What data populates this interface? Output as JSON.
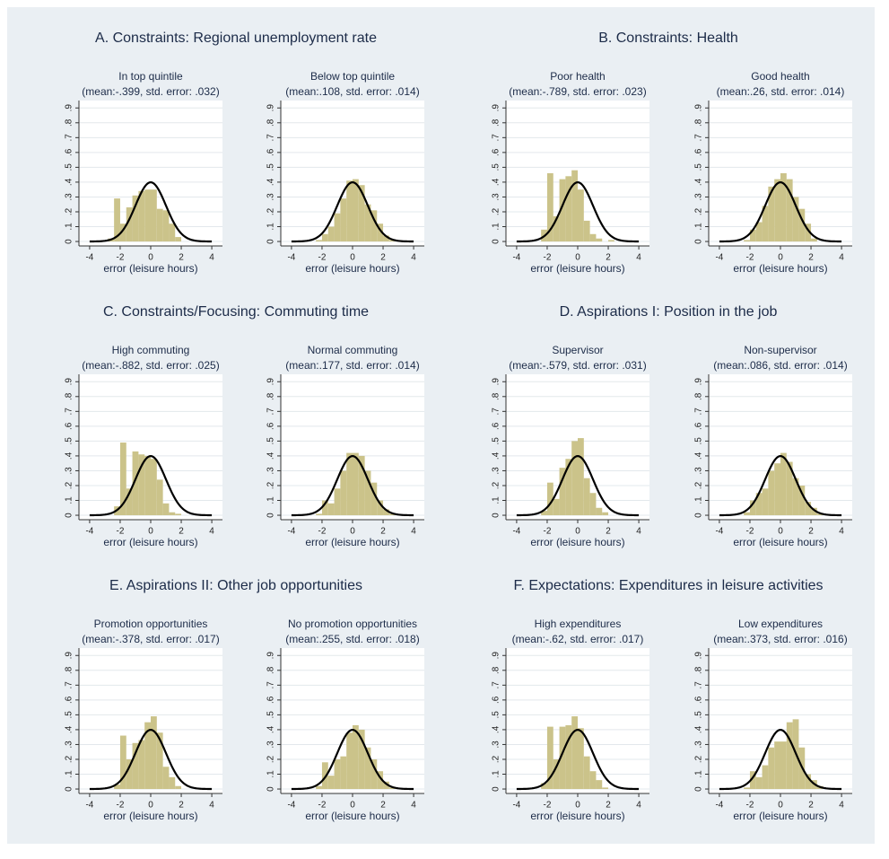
{
  "figure": {
    "panel_titles": [
      "A. Constraints: Regional unemployment rate",
      "B. Constraints: Health",
      "C. Constraints/Focusing: Commuting time",
      "D. Aspirations I: Position in the job",
      "E. Aspirations II: Other job opportunities",
      "F. Expectations: Expenditures in leisure activities"
    ]
  },
  "chart_data": [
    {
      "type": "histogram",
      "title": "In top quintile",
      "subtitle": "(mean:-.399, std. error: .032)",
      "xlabel": "error (leisure hours)",
      "color": "#cbc38a",
      "curve_color": "#000000",
      "density_curve": true,
      "grid": true,
      "bins": [
        -2.8,
        -2.4,
        -2,
        -1.6,
        -1.2,
        -0.8,
        -0.4,
        0,
        0.4,
        0.8,
        1.2,
        1.6,
        2,
        2.4,
        2.8
      ],
      "values": [
        0.02,
        0.29,
        0.12,
        0.23,
        0.31,
        0.34,
        0.35,
        0.35,
        0.22,
        0.21,
        0.12,
        0.03,
        0,
        0
      ],
      "xlim": [
        -4.7,
        4.7
      ],
      "ylim": [
        -0.03,
        0.95
      ],
      "xticks": [
        -4,
        -2,
        0,
        2,
        4
      ],
      "yticks": [
        0,
        {
          "value": 0.1,
          "label": ".1"
        },
        {
          "value": 0.2,
          "label": ".2"
        },
        {
          "value": 0.3,
          "label": ".3"
        },
        {
          "value": 0.4,
          "label": ".4"
        },
        {
          "value": 0.5,
          "label": ".5"
        },
        {
          "value": 0.6,
          "label": ".6"
        },
        {
          "value": 0.7,
          "label": ".7"
        },
        {
          "value": 0.8,
          "label": ".8"
        },
        {
          "value": 0.9,
          "label": ".9"
        }
      ]
    },
    {
      "type": "histogram",
      "title": "Below top quintile",
      "subtitle": "(mean:.108, std. error: .014)",
      "xlabel": "error (leisure hours)",
      "color": "#cbc38a",
      "curve_color": "#000000",
      "density_curve": true,
      "grid": true,
      "bins": [
        -2.8,
        -2.4,
        -2,
        -1.6,
        -1.2,
        -0.8,
        -0.4,
        0,
        0.4,
        0.8,
        1.2,
        1.6,
        2,
        2.4,
        2.8
      ],
      "values": [
        0,
        0.01,
        0.05,
        0.1,
        0.19,
        0.29,
        0.41,
        0.42,
        0.38,
        0.25,
        0.21,
        0.12,
        0.04,
        0.01
      ],
      "xlim": [
        -4.7,
        4.7
      ],
      "ylim": [
        -0.03,
        0.95
      ],
      "xticks": [
        -4,
        -2,
        0,
        2,
        4
      ],
      "yticks": [
        0,
        {
          "value": 0.1,
          "label": ".1"
        },
        {
          "value": 0.2,
          "label": ".2"
        },
        {
          "value": 0.3,
          "label": ".3"
        },
        {
          "value": 0.4,
          "label": ".4"
        },
        {
          "value": 0.5,
          "label": ".5"
        },
        {
          "value": 0.6,
          "label": ".6"
        },
        {
          "value": 0.7,
          "label": ".7"
        },
        {
          "value": 0.8,
          "label": ".8"
        },
        {
          "value": 0.9,
          "label": ".9"
        }
      ]
    },
    {
      "type": "histogram",
      "title": "Poor health",
      "subtitle": "(mean:-.789, std. error: .023)",
      "xlabel": "error (leisure hours)",
      "color": "#cbc38a",
      "curve_color": "#000000",
      "density_curve": true,
      "grid": true,
      "bins": [
        -2.8,
        -2.4,
        -2,
        -1.6,
        -1.2,
        -0.8,
        -0.4,
        0,
        0.4,
        0.8,
        1.2,
        1.6,
        2,
        2.4,
        2.8
      ],
      "values": [
        0,
        0.08,
        0.46,
        0.17,
        0.42,
        0.44,
        0.48,
        0.35,
        0.14,
        0.05,
        0.02,
        0,
        0.01,
        0
      ],
      "xlim": [
        -4.7,
        4.7
      ],
      "ylim": [
        -0.03,
        0.95
      ],
      "xticks": [
        -4,
        -2,
        0,
        2,
        4
      ],
      "yticks": [
        0,
        {
          "value": 0.1,
          "label": ".1"
        },
        {
          "value": 0.2,
          "label": ".2"
        },
        {
          "value": 0.3,
          "label": ".3"
        },
        {
          "value": 0.4,
          "label": ".4"
        },
        {
          "value": 0.5,
          "label": ".5"
        },
        {
          "value": 0.6,
          "label": ".6"
        },
        {
          "value": 0.7,
          "label": ".7"
        },
        {
          "value": 0.8,
          "label": ".8"
        },
        {
          "value": 0.9,
          "label": ".9"
        }
      ]
    },
    {
      "type": "histogram",
      "title": "Good health",
      "subtitle": "(mean:.26, std. error: .014)",
      "xlabel": "error (leisure hours)",
      "color": "#cbc38a",
      "curve_color": "#000000",
      "density_curve": true,
      "grid": true,
      "bins": [
        -2.8,
        -2.4,
        -2,
        -1.6,
        -1.2,
        -0.8,
        -0.4,
        0,
        0.4,
        0.8,
        1.2,
        1.6,
        2,
        2.4,
        2.8
      ],
      "values": [
        0,
        0.01,
        0.08,
        0.13,
        0.24,
        0.37,
        0.42,
        0.46,
        0.42,
        0.3,
        0.22,
        0.12,
        0.02,
        0
      ],
      "xlim": [
        -4.7,
        4.7
      ],
      "ylim": [
        -0.03,
        0.95
      ],
      "xticks": [
        -4,
        -2,
        0,
        2,
        4
      ],
      "yticks": [
        0,
        {
          "value": 0.1,
          "label": ".1"
        },
        {
          "value": 0.2,
          "label": ".2"
        },
        {
          "value": 0.3,
          "label": ".3"
        },
        {
          "value": 0.4,
          "label": ".4"
        },
        {
          "value": 0.5,
          "label": ".5"
        },
        {
          "value": 0.6,
          "label": ".6"
        },
        {
          "value": 0.7,
          "label": ".7"
        },
        {
          "value": 0.8,
          "label": ".8"
        },
        {
          "value": 0.9,
          "label": ".9"
        }
      ]
    },
    {
      "type": "histogram",
      "title": "High commuting",
      "subtitle": "(mean:-.882, std. error: .025)",
      "xlabel": "error (leisure hours)",
      "color": "#cbc38a",
      "curve_color": "#000000",
      "density_curve": true,
      "grid": true,
      "bins": [
        -2.8,
        -2.4,
        -2,
        -1.6,
        -1.2,
        -0.8,
        -0.4,
        0,
        0.4,
        0.8,
        1.2,
        1.6,
        2,
        2.4,
        2.8
      ],
      "values": [
        0,
        0.06,
        0.49,
        0.18,
        0.43,
        0.41,
        0.4,
        0.38,
        0.24,
        0.08,
        0.02,
        0.01,
        0,
        0
      ],
      "xlim": [
        -4.7,
        4.7
      ],
      "ylim": [
        -0.03,
        0.95
      ],
      "xticks": [
        -4,
        -2,
        0,
        2,
        4
      ],
      "yticks": [
        0,
        {
          "value": 0.1,
          "label": ".1"
        },
        {
          "value": 0.2,
          "label": ".2"
        },
        {
          "value": 0.3,
          "label": ".3"
        },
        {
          "value": 0.4,
          "label": ".4"
        },
        {
          "value": 0.5,
          "label": ".5"
        },
        {
          "value": 0.6,
          "label": ".6"
        },
        {
          "value": 0.7,
          "label": ".7"
        },
        {
          "value": 0.8,
          "label": ".8"
        },
        {
          "value": 0.9,
          "label": ".9"
        }
      ]
    },
    {
      "type": "histogram",
      "title": "Normal commuting",
      "subtitle": "(mean:.177, std. error: .014)",
      "xlabel": "error (leisure hours)",
      "color": "#cbc38a",
      "curve_color": "#000000",
      "density_curve": true,
      "grid": true,
      "bins": [
        -2.8,
        -2.4,
        -2,
        -1.6,
        -1.2,
        -0.8,
        -0.4,
        0,
        0.4,
        0.8,
        1.2,
        1.6,
        2,
        2.4,
        2.8
      ],
      "values": [
        0,
        0.01,
        0.1,
        0.08,
        0.18,
        0.3,
        0.42,
        0.42,
        0.4,
        0.3,
        0.22,
        0.1,
        0.04,
        0.01
      ],
      "xlim": [
        -4.7,
        4.7
      ],
      "ylim": [
        -0.03,
        0.95
      ],
      "xticks": [
        -4,
        -2,
        0,
        2,
        4
      ],
      "yticks": [
        0,
        {
          "value": 0.1,
          "label": ".1"
        },
        {
          "value": 0.2,
          "label": ".2"
        },
        {
          "value": 0.3,
          "label": ".3"
        },
        {
          "value": 0.4,
          "label": ".4"
        },
        {
          "value": 0.5,
          "label": ".5"
        },
        {
          "value": 0.6,
          "label": ".6"
        },
        {
          "value": 0.7,
          "label": ".7"
        },
        {
          "value": 0.8,
          "label": ".8"
        },
        {
          "value": 0.9,
          "label": ".9"
        }
      ]
    },
    {
      "type": "histogram",
      "title": "Supervisor",
      "subtitle": "(mean:-.579, std. error: .031)",
      "xlabel": "error (leisure hours)",
      "color": "#cbc38a",
      "curve_color": "#000000",
      "density_curve": true,
      "grid": true,
      "bins": [
        -2.8,
        -2.4,
        -2,
        -1.6,
        -1.2,
        -0.8,
        -0.4,
        0,
        0.4,
        0.8,
        1.2,
        1.6,
        2,
        2.4,
        2.8
      ],
      "values": [
        0,
        0.03,
        0.22,
        0.11,
        0.32,
        0.38,
        0.5,
        0.52,
        0.25,
        0.15,
        0.05,
        0.02,
        0,
        0
      ],
      "xlim": [
        -4.7,
        4.7
      ],
      "ylim": [
        -0.03,
        0.95
      ],
      "xticks": [
        -4,
        -2,
        0,
        2,
        4
      ],
      "yticks": [
        0,
        {
          "value": 0.1,
          "label": ".1"
        },
        {
          "value": 0.2,
          "label": ".2"
        },
        {
          "value": 0.3,
          "label": ".3"
        },
        {
          "value": 0.4,
          "label": ".4"
        },
        {
          "value": 0.5,
          "label": ".5"
        },
        {
          "value": 0.6,
          "label": ".6"
        },
        {
          "value": 0.7,
          "label": ".7"
        },
        {
          "value": 0.8,
          "label": ".8"
        },
        {
          "value": 0.9,
          "label": ".9"
        }
      ]
    },
    {
      "type": "histogram",
      "title": "Non-supervisor",
      "subtitle": "(mean:.086, std. error: .014)",
      "xlabel": "error (leisure hours)",
      "color": "#cbc38a",
      "curve_color": "#000000",
      "density_curve": true,
      "grid": true,
      "bins": [
        -2.8,
        -2.4,
        -2,
        -1.6,
        -1.2,
        -0.8,
        -0.4,
        0,
        0.4,
        0.8,
        1.2,
        1.6,
        2,
        2.4,
        2.8
      ],
      "values": [
        0,
        0.02,
        0.1,
        0.15,
        0.18,
        0.3,
        0.35,
        0.42,
        0.36,
        0.25,
        0.2,
        0.09,
        0.05,
        0.01
      ],
      "xlim": [
        -4.7,
        4.7
      ],
      "ylim": [
        -0.03,
        0.95
      ],
      "xticks": [
        -4,
        -2,
        0,
        2,
        4
      ],
      "yticks": [
        0,
        {
          "value": 0.1,
          "label": ".1"
        },
        {
          "value": 0.2,
          "label": ".2"
        },
        {
          "value": 0.3,
          "label": ".3"
        },
        {
          "value": 0.4,
          "label": ".4"
        },
        {
          "value": 0.5,
          "label": ".5"
        },
        {
          "value": 0.6,
          "label": ".6"
        },
        {
          "value": 0.7,
          "label": ".7"
        },
        {
          "value": 0.8,
          "label": ".8"
        },
        {
          "value": 0.9,
          "label": ".9"
        }
      ]
    },
    {
      "type": "histogram",
      "title": "Promotion opportunities",
      "subtitle": "(mean:-.378, std. error: .017)",
      "xlabel": "error (leisure hours)",
      "color": "#cbc38a",
      "curve_color": "#000000",
      "density_curve": true,
      "grid": true,
      "bins": [
        -2.8,
        -2.4,
        -2,
        -1.6,
        -1.2,
        -0.8,
        -0.4,
        0,
        0.4,
        0.8,
        1.2,
        1.6,
        2,
        2.4,
        2.8
      ],
      "values": [
        0,
        0.03,
        0.36,
        0.2,
        0.31,
        0.33,
        0.45,
        0.49,
        0.38,
        0.15,
        0.08,
        0.02,
        0,
        0
      ],
      "xlim": [
        -4.7,
        4.7
      ],
      "ylim": [
        -0.03,
        0.95
      ],
      "xticks": [
        -4,
        -2,
        0,
        2,
        4
      ],
      "yticks": [
        0,
        {
          "value": 0.1,
          "label": ".1"
        },
        {
          "value": 0.2,
          "label": ".2"
        },
        {
          "value": 0.3,
          "label": ".3"
        },
        {
          "value": 0.4,
          "label": ".4"
        },
        {
          "value": 0.5,
          "label": ".5"
        },
        {
          "value": 0.6,
          "label": ".6"
        },
        {
          "value": 0.7,
          "label": ".7"
        },
        {
          "value": 0.8,
          "label": ".8"
        },
        {
          "value": 0.9,
          "label": ".9"
        }
      ]
    },
    {
      "type": "histogram",
      "title": "No promotion opportunities",
      "subtitle": "(mean:.255, std. error: .018)",
      "xlabel": "error (leisure hours)",
      "color": "#cbc38a",
      "curve_color": "#000000",
      "density_curve": true,
      "grid": true,
      "bins": [
        -2.8,
        -2.4,
        -2,
        -1.6,
        -1.2,
        -0.8,
        -0.4,
        0,
        0.4,
        0.8,
        1.2,
        1.6,
        2,
        2.4,
        2.8
      ],
      "values": [
        0,
        0.02,
        0.18,
        0.09,
        0.2,
        0.22,
        0.38,
        0.43,
        0.4,
        0.28,
        0.2,
        0.12,
        0.05,
        0.01
      ],
      "xlim": [
        -4.7,
        4.7
      ],
      "ylim": [
        -0.03,
        0.95
      ],
      "xticks": [
        -4,
        -2,
        0,
        2,
        4
      ],
      "yticks": [
        0,
        {
          "value": 0.1,
          "label": ".1"
        },
        {
          "value": 0.2,
          "label": ".2"
        },
        {
          "value": 0.3,
          "label": ".3"
        },
        {
          "value": 0.4,
          "label": ".4"
        },
        {
          "value": 0.5,
          "label": ".5"
        },
        {
          "value": 0.6,
          "label": ".6"
        },
        {
          "value": 0.7,
          "label": ".7"
        },
        {
          "value": 0.8,
          "label": ".8"
        },
        {
          "value": 0.9,
          "label": ".9"
        }
      ]
    },
    {
      "type": "histogram",
      "title": "High expenditures",
      "subtitle": "(mean:-.62, std. error: .017)",
      "xlabel": "error (leisure hours)",
      "color": "#cbc38a",
      "curve_color": "#000000",
      "density_curve": true,
      "grid": true,
      "bins": [
        -2.8,
        -2.4,
        -2,
        -1.6,
        -1.2,
        -0.8,
        -0.4,
        0,
        0.4,
        0.8,
        1.2,
        1.6,
        2,
        2.4,
        2.8
      ],
      "values": [
        0,
        0.04,
        0.42,
        0.2,
        0.42,
        0.43,
        0.49,
        0.41,
        0.22,
        0.12,
        0.06,
        0.01,
        0,
        0
      ],
      "xlim": [
        -4.7,
        4.7
      ],
      "ylim": [
        -0.03,
        0.95
      ],
      "xticks": [
        -4,
        -2,
        0,
        2,
        4
      ],
      "yticks": [
        0,
        {
          "value": 0.1,
          "label": ".1"
        },
        {
          "value": 0.2,
          "label": ".2"
        },
        {
          "value": 0.3,
          "label": ".3"
        },
        {
          "value": 0.4,
          "label": ".4"
        },
        {
          "value": 0.5,
          "label": ".5"
        },
        {
          "value": 0.6,
          "label": ".6"
        },
        {
          "value": 0.7,
          "label": ".7"
        },
        {
          "value": 0.8,
          "label": ".8"
        },
        {
          "value": 0.9,
          "label": ".9"
        }
      ]
    },
    {
      "type": "histogram",
      "title": "Low expenditures",
      "subtitle": "(mean:.373, std. error: .016)",
      "xlabel": "error (leisure hours)",
      "color": "#cbc38a",
      "curve_color": "#000000",
      "density_curve": true,
      "grid": true,
      "bins": [
        -2.8,
        -2.4,
        -2,
        -1.6,
        -1.2,
        -0.8,
        -0.4,
        0,
        0.4,
        0.8,
        1.2,
        1.6,
        2,
        2.4,
        2.8
      ],
      "values": [
        0,
        0.01,
        0.12,
        0.08,
        0.16,
        0.28,
        0.32,
        0.32,
        0.45,
        0.47,
        0.28,
        0.1,
        0.06,
        0.02
      ],
      "xlim": [
        -4.7,
        4.7
      ],
      "ylim": [
        -0.03,
        0.95
      ],
      "xticks": [
        -4,
        -2,
        0,
        2,
        4
      ],
      "yticks": [
        0,
        {
          "value": 0.1,
          "label": ".1"
        },
        {
          "value": 0.2,
          "label": ".2"
        },
        {
          "value": 0.3,
          "label": ".3"
        },
        {
          "value": 0.4,
          "label": ".4"
        },
        {
          "value": 0.5,
          "label": ".5"
        },
        {
          "value": 0.6,
          "label": ".6"
        },
        {
          "value": 0.7,
          "label": ".7"
        },
        {
          "value": 0.8,
          "label": ".8"
        },
        {
          "value": 0.9,
          "label": ".9"
        }
      ]
    }
  ]
}
